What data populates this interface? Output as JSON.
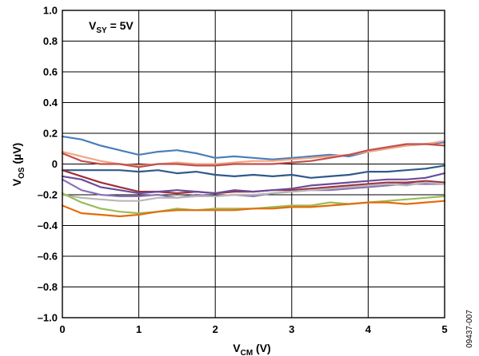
{
  "chart_data": {
    "type": "line",
    "title": "",
    "annotation": {
      "main": "V",
      "sub": "SY",
      "rest": " = 5V"
    },
    "xlabel": {
      "main": "V",
      "sub": "CM",
      "rest": " (V)"
    },
    "ylabel": {
      "main": "V",
      "sub": "OS",
      "rest": " (µV)"
    },
    "xlim": [
      0,
      5
    ],
    "ylim": [
      -1.0,
      1.0
    ],
    "x_ticks": [
      0,
      1,
      2,
      3,
      4,
      5
    ],
    "x_tick_labels": [
      "0",
      "1",
      "2",
      "3",
      "4",
      "5"
    ],
    "y_ticks": [
      1.0,
      0.8,
      0.6,
      0.4,
      0.2,
      0,
      -0.2,
      -0.4,
      -0.6,
      -0.8,
      -1.0
    ],
    "y_tick_labels": [
      "1.0",
      "0.8",
      "0.6",
      "0.4",
      "0.2",
      "0",
      "–0.2",
      "–0.4",
      "–0.6",
      "–0.8",
      "–1.0"
    ],
    "grid": true,
    "legend": "none",
    "figure_id": "09437-007",
    "x": [
      0,
      0.25,
      0.5,
      0.75,
      1.0,
      1.25,
      1.5,
      1.75,
      2.0,
      2.25,
      2.5,
      2.75,
      3.0,
      3.25,
      3.5,
      3.75,
      4.0,
      4.25,
      4.5,
      4.75,
      5.0
    ],
    "series": [
      {
        "color": "#4a7ebb",
        "values": [
          0.18,
          0.16,
          0.12,
          0.09,
          0.06,
          0.08,
          0.09,
          0.07,
          0.04,
          0.05,
          0.04,
          0.03,
          0.04,
          0.05,
          0.06,
          0.05,
          0.08,
          0.1,
          0.12,
          0.13,
          0.14
        ]
      },
      {
        "color": "#f4a582",
        "values": [
          0.08,
          0.05,
          0.02,
          0.0,
          -0.01,
          0.0,
          0.01,
          0.0,
          0.0,
          0.01,
          0.02,
          0.02,
          0.03,
          0.04,
          0.05,
          0.06,
          0.08,
          0.1,
          0.12,
          0.13,
          0.15
        ]
      },
      {
        "color": "#c0504d",
        "values": [
          0.07,
          0.02,
          0.0,
          0.0,
          -0.02,
          0.0,
          0.0,
          -0.01,
          -0.01,
          0.0,
          0.0,
          0.0,
          0.01,
          0.02,
          0.04,
          0.06,
          0.09,
          0.11,
          0.13,
          0.13,
          0.12
        ]
      },
      {
        "color": "#2f5a8a",
        "values": [
          -0.04,
          -0.04,
          -0.04,
          -0.04,
          -0.05,
          -0.04,
          -0.06,
          -0.05,
          -0.07,
          -0.08,
          -0.07,
          -0.08,
          -0.07,
          -0.09,
          -0.08,
          -0.07,
          -0.05,
          -0.05,
          -0.04,
          -0.03,
          -0.01
        ]
      },
      {
        "color": "#9d2f3a",
        "values": [
          -0.04,
          -0.08,
          -0.12,
          -0.15,
          -0.18,
          -0.18,
          -0.19,
          -0.18,
          -0.19,
          -0.18,
          -0.18,
          -0.17,
          -0.17,
          -0.16,
          -0.15,
          -0.14,
          -0.13,
          -0.12,
          -0.12,
          -0.11,
          -0.12
        ]
      },
      {
        "color": "#6b4c9a",
        "values": [
          -0.08,
          -0.1,
          -0.15,
          -0.17,
          -0.19,
          -0.18,
          -0.17,
          -0.18,
          -0.19,
          -0.17,
          -0.18,
          -0.17,
          -0.16,
          -0.14,
          -0.13,
          -0.12,
          -0.11,
          -0.1,
          -0.1,
          -0.09,
          -0.06
        ]
      },
      {
        "color": "#8e6fb5",
        "values": [
          -0.1,
          -0.17,
          -0.2,
          -0.21,
          -0.21,
          -0.2,
          -0.22,
          -0.2,
          -0.21,
          -0.2,
          -0.21,
          -0.19,
          -0.18,
          -0.17,
          -0.17,
          -0.16,
          -0.15,
          -0.14,
          -0.13,
          -0.13,
          -0.13
        ]
      },
      {
        "color": "#b7b7b7",
        "values": [
          -0.2,
          -0.22,
          -0.23,
          -0.24,
          -0.24,
          -0.22,
          -0.22,
          -0.21,
          -0.21,
          -0.2,
          -0.2,
          -0.19,
          -0.18,
          -0.17,
          -0.16,
          -0.15,
          -0.14,
          -0.13,
          -0.14,
          -0.12,
          -0.13
        ]
      },
      {
        "color": "#9bbb59",
        "values": [
          -0.19,
          -0.25,
          -0.29,
          -0.31,
          -0.32,
          -0.31,
          -0.29,
          -0.3,
          -0.29,
          -0.29,
          -0.29,
          -0.28,
          -0.27,
          -0.27,
          -0.25,
          -0.26,
          -0.25,
          -0.24,
          -0.23,
          -0.22,
          -0.21
        ]
      },
      {
        "color": "#e46c0a",
        "values": [
          -0.27,
          -0.32,
          -0.33,
          -0.34,
          -0.33,
          -0.31,
          -0.3,
          -0.3,
          -0.3,
          -0.3,
          -0.29,
          -0.29,
          -0.28,
          -0.28,
          -0.27,
          -0.26,
          -0.25,
          -0.25,
          -0.26,
          -0.25,
          -0.24
        ]
      }
    ]
  }
}
